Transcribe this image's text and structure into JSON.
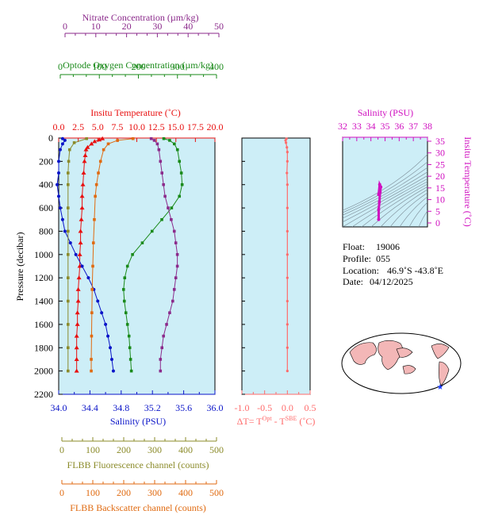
{
  "colors": {
    "nitrate": "#8b2a8b",
    "oxygen": "#1a8a1a",
    "temperature": "#e81010",
    "salinity": "#0a14c8",
    "fluorescence": "#8b8b2a",
    "backscatter": "#e06a10",
    "delta": "#ff6b6b",
    "tsaxis": "#d010c0",
    "panel_bg": "#cdeef7",
    "black": "#000000"
  },
  "axes": {
    "nitrate": {
      "label": "Nitrate Concentration (µm/kg)",
      "ticks": [
        "0",
        "10",
        "20",
        "30",
        "40",
        "50"
      ]
    },
    "oxygen": {
      "label": "Optode Oxygen Concentration (µm/kg)",
      "ticks": [
        "0",
        "100",
        "200",
        "300",
        "400"
      ]
    },
    "temperature": {
      "label": "Insitu Temperature (˚C)",
      "ticks": [
        "0.0",
        "2.5",
        "5.0",
        "7.5",
        "10.0",
        "12.5",
        "15.0",
        "17.5",
        "20.0"
      ]
    },
    "pressure": {
      "label": "Pressure (decibar)",
      "ticks": [
        "0",
        "200",
        "400",
        "600",
        "800",
        "1000",
        "1200",
        "1400",
        "1600",
        "1800",
        "2000",
        "2200"
      ]
    },
    "salinity": {
      "label": "Salinity (PSU)",
      "ticks": [
        "34.0",
        "34.4",
        "34.8",
        "35.2",
        "35.6",
        "36.0"
      ]
    },
    "delta": {
      "label_main": "ΔT= T",
      "sup1": "Opt",
      "label_mid": " - T",
      "sup2": "SBE",
      "label_end": " (˚C)",
      "ticks": [
        "-1.0",
        "-0.5",
        "0.0",
        "0.5"
      ]
    },
    "fluorescence": {
      "label": "FLBB Fluorescence channel (counts)",
      "ticks": [
        "0",
        "100",
        "200",
        "300",
        "400",
        "500"
      ]
    },
    "backscatter": {
      "label": "FLBB Backscatter channel (counts)",
      "ticks": [
        "0",
        "100",
        "200",
        "300",
        "400",
        "500"
      ]
    },
    "ts_salinity": {
      "label": "Salinity (PSU)",
      "ticks": [
        "32",
        "33",
        "34",
        "35",
        "36",
        "37",
        "38"
      ]
    },
    "ts_temperature": {
      "label": "Insitu Temperature (˚C)",
      "ticks": [
        "0",
        "5",
        "10",
        "15",
        "20",
        "25",
        "30",
        "35"
      ]
    }
  },
  "info": {
    "float_label": "Float:",
    "float_value": "19006",
    "profile_label": "Profile:",
    "profile_value": "055",
    "location_label": "Location:",
    "location_value": "46.9˚S  -43.8˚E",
    "date_label": "Date:",
    "date_value": "04/12/2025"
  },
  "map": {
    "marker": "★"
  },
  "chart_data": {
    "type": "line",
    "y_axis": {
      "name": "pressure",
      "unit": "decibar",
      "range": [
        0,
        2200
      ],
      "reversed": true
    },
    "grid": false,
    "series": [
      {
        "key": "temperature",
        "axis": "temperature",
        "range": [
          0,
          20
        ],
        "points": [
          [
            5.6,
            5
          ],
          [
            5.2,
            15
          ],
          [
            4.6,
            30
          ],
          [
            4.2,
            50
          ],
          [
            3.7,
            80
          ],
          [
            3.5,
            100
          ],
          [
            3.4,
            150
          ],
          [
            3.3,
            200
          ],
          [
            3.2,
            300
          ],
          [
            3.1,
            400
          ],
          [
            3.0,
            500
          ],
          [
            3.0,
            600
          ],
          [
            2.9,
            700
          ],
          [
            2.8,
            800
          ],
          [
            2.8,
            900
          ],
          [
            2.7,
            1000
          ],
          [
            2.7,
            1100
          ],
          [
            2.6,
            1200
          ],
          [
            2.5,
            1300
          ],
          [
            2.5,
            1400
          ],
          [
            2.4,
            1500
          ],
          [
            2.4,
            1600
          ],
          [
            2.3,
            1700
          ],
          [
            2.3,
            1800
          ],
          [
            2.3,
            1900
          ],
          [
            2.3,
            2000
          ]
        ]
      },
      {
        "key": "salinity",
        "axis": "salinity",
        "range": [
          34,
          36
        ],
        "points": [
          [
            34.05,
            5
          ],
          [
            34.08,
            20
          ],
          [
            34.05,
            50
          ],
          [
            34.02,
            100
          ],
          [
            34.0,
            200
          ],
          [
            34.0,
            300
          ],
          [
            33.98,
            400
          ],
          [
            34.0,
            500
          ],
          [
            34.02,
            600
          ],
          [
            34.05,
            700
          ],
          [
            34.08,
            800
          ],
          [
            34.15,
            900
          ],
          [
            34.22,
            1000
          ],
          [
            34.3,
            1100
          ],
          [
            34.38,
            1200
          ],
          [
            34.45,
            1300
          ],
          [
            34.5,
            1400
          ],
          [
            34.55,
            1500
          ],
          [
            34.6,
            1600
          ],
          [
            34.63,
            1700
          ],
          [
            34.66,
            1800
          ],
          [
            34.68,
            1900
          ],
          [
            34.7,
            2000
          ]
        ]
      },
      {
        "key": "oxygen",
        "axis": "oxygen",
        "range": [
          0,
          400
        ],
        "points": [
          [
            265,
            5
          ],
          [
            280,
            20
          ],
          [
            292,
            50
          ],
          [
            300,
            100
          ],
          [
            305,
            200
          ],
          [
            310,
            300
          ],
          [
            312,
            400
          ],
          [
            305,
            500
          ],
          [
            285,
            600
          ],
          [
            260,
            700
          ],
          [
            235,
            800
          ],
          [
            210,
            900
          ],
          [
            185,
            1000
          ],
          [
            172,
            1100
          ],
          [
            165,
            1200
          ],
          [
            162,
            1300
          ],
          [
            164,
            1400
          ],
          [
            168,
            1500
          ],
          [
            172,
            1600
          ],
          [
            176,
            1700
          ],
          [
            178,
            1800
          ],
          [
            180,
            1900
          ],
          [
            182,
            2000
          ]
        ]
      },
      {
        "key": "nitrate",
        "axis": "nitrate",
        "range": [
          0,
          50
        ],
        "points": [
          [
            28,
            5
          ],
          [
            29,
            20
          ],
          [
            30,
            50
          ],
          [
            30.5,
            100
          ],
          [
            31,
            200
          ],
          [
            31.5,
            300
          ],
          [
            32,
            400
          ],
          [
            32.5,
            500
          ],
          [
            33.5,
            600
          ],
          [
            34.5,
            700
          ],
          [
            35.5,
            800
          ],
          [
            36,
            900
          ],
          [
            36.5,
            1000
          ],
          [
            36.5,
            1100
          ],
          [
            36,
            1200
          ],
          [
            35.5,
            1300
          ],
          [
            35,
            1400
          ],
          [
            34,
            1500
          ],
          [
            33,
            1600
          ],
          [
            32,
            1700
          ],
          [
            31.5,
            1800
          ],
          [
            31,
            1900
          ],
          [
            31,
            2000
          ]
        ]
      },
      {
        "key": "fluorescence",
        "axis": "fluorescence",
        "range": [
          0,
          500
        ],
        "points": [
          [
            80,
            5
          ],
          [
            40,
            40
          ],
          [
            25,
            100
          ],
          [
            22,
            200
          ],
          [
            20,
            300
          ],
          [
            20,
            400
          ],
          [
            20,
            600
          ],
          [
            20,
            800
          ],
          [
            20,
            1000
          ],
          [
            20,
            1200
          ],
          [
            20,
            1400
          ],
          [
            20,
            1600
          ],
          [
            20,
            1800
          ],
          [
            20,
            2000
          ]
        ]
      },
      {
        "key": "backscatter",
        "axis": "backscatter",
        "range": [
          0,
          500
        ],
        "points": [
          [
            230,
            5
          ],
          [
            180,
            20
          ],
          [
            150,
            50
          ],
          [
            135,
            100
          ],
          [
            125,
            200
          ],
          [
            118,
            300
          ],
          [
            112,
            400
          ],
          [
            108,
            500
          ],
          [
            105,
            700
          ],
          [
            102,
            900
          ],
          [
            100,
            1100
          ],
          [
            98,
            1300
          ],
          [
            97,
            1500
          ],
          [
            96,
            1700
          ],
          [
            95,
            1900
          ],
          [
            95,
            2000
          ]
        ]
      },
      {
        "key": "delta",
        "axis": "delta",
        "range": [
          -1.0,
          0.5
        ],
        "points": [
          [
            -0.02,
            5
          ],
          [
            -0.04,
            20
          ],
          [
            -0.03,
            40
          ],
          [
            -0.01,
            80
          ],
          [
            0.0,
            120
          ],
          [
            0.0,
            200
          ],
          [
            -0.01,
            300
          ],
          [
            0.0,
            400
          ],
          [
            0.0,
            600
          ],
          [
            0.0,
            800
          ],
          [
            0.0,
            1000
          ],
          [
            0.0,
            1200
          ],
          [
            0.0,
            1400
          ],
          [
            0.0,
            1600
          ],
          [
            0.0,
            1800
          ],
          [
            0.0,
            2000
          ]
        ]
      }
    ],
    "ts_diagram": {
      "x_range": [
        32,
        38
      ],
      "y_range": [
        -1,
        35
      ],
      "points": [
        [
          34.55,
          2
        ],
        [
          34.55,
          6
        ],
        [
          34.6,
          9
        ],
        [
          34.65,
          13
        ],
        [
          34.7,
          15
        ],
        [
          34.62,
          16
        ],
        [
          34.55,
          12
        ]
      ]
    }
  }
}
